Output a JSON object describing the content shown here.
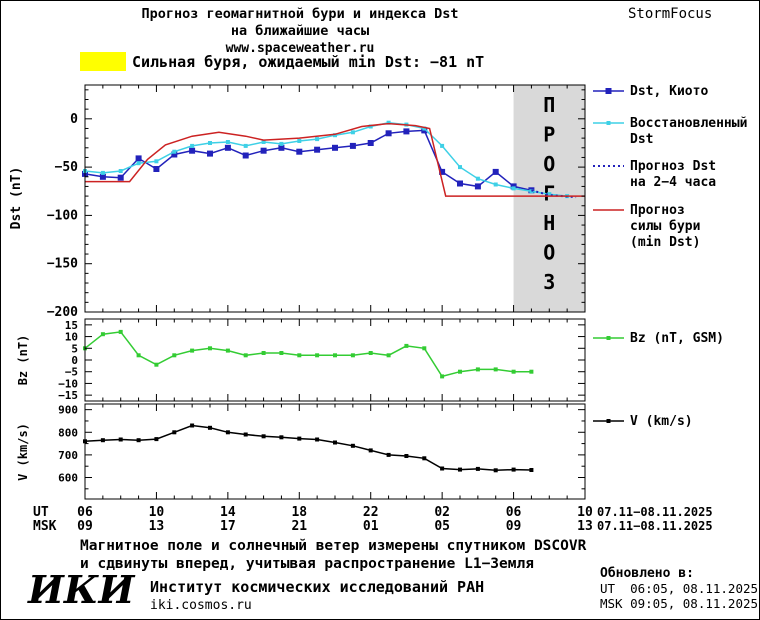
{
  "header": {
    "title_line1": "Прогноз геомагнитной бури и индекса Dst",
    "title_line2": "на ближайшие часы",
    "site_link": "www.spaceweather.ru",
    "link_color": "#2233bb",
    "brand": "StormFocus"
  },
  "alert": {
    "swatch_color": "#ffff00",
    "text": "Сильная буря, ожидаемый min Dst: −81 nT"
  },
  "legend": {
    "kyoto": [
      "Dst, Киото"
    ],
    "restored": [
      "Восстановленный",
      "Dst"
    ],
    "forecast": [
      "Прогноз Dst",
      "на 2−4 часа"
    ],
    "storm": [
      "Прогноз",
      "силы бури",
      "(min Dst)"
    ],
    "bz": [
      "Bz (nT, GSM)"
    ],
    "v": [
      "V (km/s)"
    ]
  },
  "xaxis": {
    "ut_label": "UT",
    "msk_label": "MSK",
    "ut_ticks": [
      "06",
      "10",
      "14",
      "18",
      "22",
      "02",
      "06",
      "10"
    ],
    "msk_ticks": [
      "09",
      "13",
      "17",
      "21",
      "01",
      "05",
      "09",
      "13"
    ],
    "ut_date": "07.11−08.11.2025",
    "msk_date": "07.11−08.11.2025"
  },
  "footer": {
    "note_line1": "Магнитное поле и солнечный ветер измерены спутником DSCOVR",
    "note_line2": "и сдвинуты вперед, учитывая распространение L1−Земля",
    "updated_label": "Обновлено в:",
    "updated_ut": "UT  06:05, 08.11.2025",
    "updated_msk": "MSK 09:05, 08.11.2025",
    "logo": "ИКИ",
    "institute": "Институт космических исследований РАН",
    "site": "iki.cosmos.ru"
  },
  "chart_data": [
    {
      "type": "line",
      "panel": "dst",
      "ylabel": "Dst (nT)",
      "ylim": [
        -200,
        35
      ],
      "yticks": [
        0,
        -50,
        -100,
        -150,
        -200
      ],
      "ytick_labels": [
        "0",
        "−50",
        "−100",
        "−150",
        "−200"
      ],
      "ytick_minor": 10,
      "xlim": [
        6,
        34
      ],
      "xticks": [
        6,
        10,
        14,
        18,
        22,
        26,
        30,
        34
      ],
      "forecast_region": {
        "start": 30,
        "end": 34,
        "label": "ПРОГНОЗ",
        "color": "#d9d9d9",
        "label_color": "#9a9a9a"
      },
      "series": [
        {
          "name": "Dst, Киото",
          "color": "#2222bb",
          "width": 1.5,
          "marker": true,
          "marker_size": 6,
          "x": [
            6,
            7,
            8,
            9,
            10,
            11,
            12,
            13,
            14,
            15,
            16,
            17,
            18,
            19,
            20,
            21,
            22,
            23,
            24,
            25,
            26,
            27,
            28,
            29,
            30,
            31
          ],
          "y": [
            -57,
            -60,
            -61,
            -41,
            -52,
            -37,
            -33,
            -36,
            -30,
            -38,
            -33,
            -30,
            -34,
            -32,
            -30,
            -28,
            -25,
            -15,
            -13,
            -12,
            -55,
            -67,
            -70,
            -55,
            -70,
            -74
          ]
        },
        {
          "name": "Восстановленный Dst",
          "color": "#3ed0e6",
          "width": 1.5,
          "marker": true,
          "marker_size": 4,
          "x": [
            6,
            7,
            8,
            9,
            10,
            11,
            12,
            13,
            14,
            15,
            16,
            17,
            18,
            19,
            20,
            21,
            22,
            23,
            24,
            25,
            26,
            27,
            28,
            29,
            30,
            31,
            32,
            33
          ],
          "y": [
            -54,
            -56,
            -54,
            -46,
            -44,
            -34,
            -28,
            -25,
            -24,
            -28,
            -24,
            -26,
            -23,
            -21,
            -17,
            -14,
            -8,
            -4,
            -6,
            -10,
            -28,
            -50,
            -62,
            -68,
            -72,
            -75,
            -78,
            -80
          ]
        },
        {
          "name": "Прогноз Dst на 2−4 часа",
          "color": "#2222bb",
          "width": 2,
          "dash": "2 3",
          "x": [
            31,
            32,
            33.5
          ],
          "y": [
            -74,
            -79,
            -81
          ]
        },
        {
          "name": "Прогноз силы бури (min Dst)",
          "color": "#cc2222",
          "width": 1.5,
          "x": [
            6,
            8.5,
            9.5,
            10.5,
            12,
            13.5,
            15,
            16,
            18,
            20,
            21.5,
            23,
            24.5,
            25.3,
            26.2,
            34
          ],
          "y": [
            -65,
            -65,
            -42,
            -27,
            -18,
            -14,
            -18,
            -22,
            -20,
            -16,
            -8,
            -5,
            -7,
            -10,
            -80,
            -80
          ]
        }
      ]
    },
    {
      "type": "line",
      "panel": "bz",
      "ylabel": "Bz (nT)",
      "ylim": [
        -17.5,
        17.5
      ],
      "yticks": [
        15,
        10,
        5,
        0,
        -5,
        -10,
        -15
      ],
      "ytick_labels": [
        "15",
        "10",
        "5",
        "0",
        "−5",
        "−10",
        "−15"
      ],
      "series": [
        {
          "name": "Bz (nT, GSM)",
          "color": "#33cc33",
          "width": 1.5,
          "marker": true,
          "marker_size": 4,
          "x": [
            6,
            7,
            8,
            9,
            10,
            11,
            12,
            13,
            14,
            15,
            16,
            17,
            18,
            19,
            20,
            21,
            22,
            23,
            24,
            25,
            26,
            27,
            28,
            29,
            30,
            31
          ],
          "y": [
            5,
            11,
            12,
            2,
            -2,
            2,
            4,
            5,
            4,
            2,
            3,
            3,
            2,
            2,
            2,
            2,
            3,
            2,
            6,
            5,
            -7,
            -5,
            -4,
            -4,
            -5,
            -5
          ]
        }
      ]
    },
    {
      "type": "line",
      "panel": "v",
      "ylabel": "V (km/s)",
      "ylim": [
        505,
        925
      ],
      "yticks": [
        900,
        800,
        700,
        600
      ],
      "ytick_labels": [
        "900",
        "800",
        "700",
        "600"
      ],
      "ytick_minor": 50,
      "series": [
        {
          "name": "V (km/s)",
          "color": "#000000",
          "width": 1.5,
          "marker": true,
          "marker_size": 4,
          "x": [
            6,
            7,
            8,
            9,
            10,
            11,
            12,
            13,
            14,
            15,
            16,
            17,
            18,
            19,
            20,
            21,
            22,
            23,
            24,
            25,
            26,
            27,
            28,
            29,
            30,
            31
          ],
          "y": [
            760,
            765,
            768,
            765,
            770,
            800,
            830,
            820,
            800,
            790,
            782,
            778,
            772,
            768,
            755,
            740,
            720,
            700,
            695,
            685,
            640,
            635,
            638,
            632,
            635,
            633
          ]
        }
      ]
    }
  ]
}
